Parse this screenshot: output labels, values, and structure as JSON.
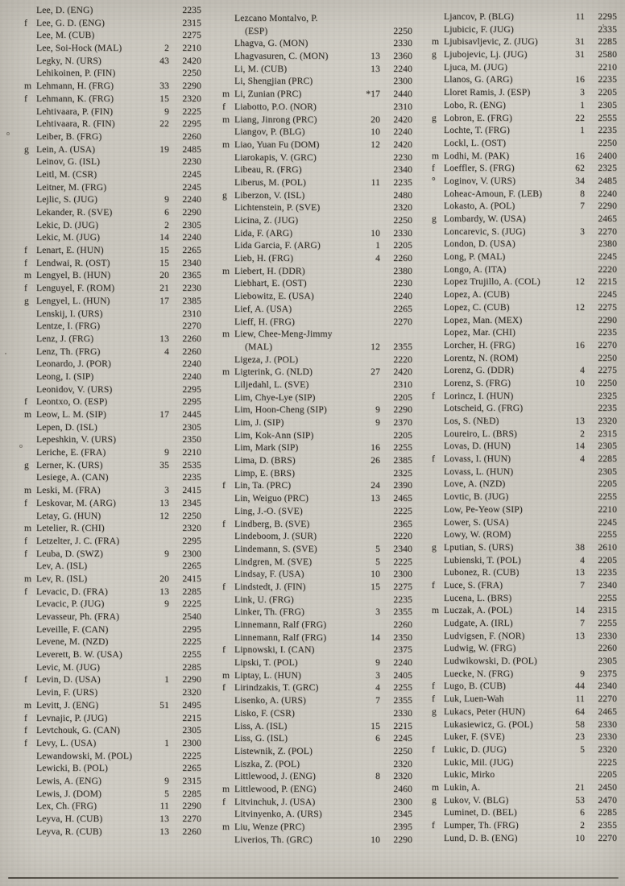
{
  "document": {
    "kind": "scanned rating list page",
    "ink_color": "#34312b",
    "paper_color": "#d3d0c8"
  },
  "columns": [
    {
      "entries": [
        [
          "",
          "Lee, D. (ENG)",
          "",
          "2235"
        ],
        [
          "f",
          "Lee, G. D. (ENG)",
          "",
          "2315"
        ],
        [
          "",
          "Lee, M. (CUB)",
          "",
          "2275"
        ],
        [
          "",
          "Lee, Soi-Hock (MAL)",
          "2",
          "2210"
        ],
        [
          "",
          "Legky, N. (URS)",
          "43",
          "2420"
        ],
        [
          "",
          "Lehikoinen, P. (FIN)",
          "",
          "2250"
        ],
        [
          "m",
          "Lehmann, H. (FRG)",
          "33",
          "2290"
        ],
        [
          "f",
          "Lehmann, K. (FRG)",
          "15",
          "2320"
        ],
        [
          "",
          "Lehtivaara, P. (FIN)",
          "9",
          "2225"
        ],
        [
          "",
          "Lehtivaara, R. (FIN)",
          "22",
          "2295"
        ],
        [
          "",
          "Leiber, B. (FRG)",
          "",
          "2260"
        ],
        [
          "g",
          "Lein, A. (USA)",
          "19",
          "2485"
        ],
        [
          "",
          "Leinov, G. (ISL)",
          "",
          "2230"
        ],
        [
          "",
          "Leitl, M. (CSR)",
          "",
          "2245"
        ],
        [
          "",
          "Leitner, M. (FRG)",
          "",
          "2245"
        ],
        [
          "",
          "Lejlic, S. (JUG)",
          "9",
          "2240"
        ],
        [
          "",
          "Lekander, R. (SVE)",
          "6",
          "2290"
        ],
        [
          "",
          "Lekic, D. (JUG)",
          "2",
          "2305"
        ],
        [
          "",
          "Lekic, M. (JUG)",
          "14",
          "2240"
        ],
        [
          "f",
          "Lenart, E. (HUN)",
          "15",
          "2265"
        ],
        [
          "f",
          "Lendwai, R. (OST)",
          "15",
          "2340"
        ],
        [
          "m",
          "Lengyel, B. (HUN)",
          "20",
          "2365"
        ],
        [
          "f",
          "Lenguyel, F. (ROM)",
          "21",
          "2230"
        ],
        [
          "g",
          "Lengyel, L. (HUN)",
          "17",
          "2385"
        ],
        [
          "",
          "Lenskij, I. (URS)",
          "",
          "2310"
        ],
        [
          "",
          "Lentze, I. (FRG)",
          "",
          "2270"
        ],
        [
          "",
          "Lenz, J. (FRG)",
          "13",
          "2260"
        ],
        [
          "",
          "Lenz, Th. (FRG)",
          "4",
          "2260"
        ],
        [
          "",
          "Leonardo, J. (POR)",
          "",
          "2240"
        ],
        [
          "",
          "Leong, I. (SIP)",
          "",
          "2240"
        ],
        [
          "",
          "Leonidov, V. (URS)",
          "",
          "2295"
        ],
        [
          "f",
          "Leontxo, O. (ESP)",
          "",
          "2295"
        ],
        [
          "m",
          "Leow, L. M. (SIP)",
          "17",
          "2445"
        ],
        [
          "",
          "Lepen, D. (ISL)",
          "",
          "2305"
        ],
        [
          "",
          "Lepeshkin, V. (URS)",
          "",
          "2350"
        ],
        [
          "",
          "Leriche, E. (FRA)",
          "9",
          "2210"
        ],
        [
          "g",
          "Lerner, K. (URS)",
          "35",
          "2535"
        ],
        [
          "",
          "Lesiege, A. (CAN)",
          "",
          "2235"
        ],
        [
          "m",
          "Leski, M. (FRA)",
          "3",
          "2415"
        ],
        [
          "f",
          "Leskovar, M. (ARG)",
          "13",
          "2345"
        ],
        [
          "",
          "Letay, G. (HUN)",
          "12",
          "2250"
        ],
        [
          "m",
          "Letelier, R. (CHI)",
          "",
          "2320"
        ],
        [
          "f",
          "Letzelter, J. C. (FRA)",
          "",
          "2295"
        ],
        [
          "f",
          "Leuba, D. (SWZ)",
          "9",
          "2300"
        ],
        [
          "",
          "Lev, A. (ISL)",
          "",
          "2265"
        ],
        [
          "m",
          "Lev, R. (ISL)",
          "20",
          "2415"
        ],
        [
          "f",
          "Levacic, D. (FRA)",
          "13",
          "2285"
        ],
        [
          "",
          "Levacic, P. (JUG)",
          "9",
          "2225"
        ],
        [
          "",
          "Levasseur, Ph. (FRA)",
          "",
          "2540"
        ],
        [
          "",
          "Leveille, F. (CAN)",
          "",
          "2295"
        ],
        [
          "",
          "Levene, M. (NZD)",
          "",
          "2225"
        ],
        [
          "",
          "Leverett, B. W. (USA)",
          "",
          "2255"
        ],
        [
          "",
          "Levic, M. (JUG)",
          "",
          "2285"
        ],
        [
          "f",
          "Levin, D. (USA)",
          "1",
          "2290"
        ],
        [
          "",
          "Levin, F. (URS)",
          "",
          "2320"
        ],
        [
          "m",
          "Levitt, J. (ENG)",
          "51",
          "2495"
        ],
        [
          "f",
          "Levnajic, P. (JUG)",
          "",
          "2215"
        ],
        [
          "f",
          "Levtchouk, G. (CAN)",
          "",
          "2305"
        ],
        [
          "f",
          "Levy, L. (USA)",
          "1",
          "2300"
        ],
        [
          "",
          "Lewandowski, M. (POL)",
          "",
          "2225"
        ],
        [
          "",
          "Lewicki, B. (POL)",
          "",
          "2265"
        ],
        [
          "",
          "Lewis, A. (ENG)",
          "9",
          "2315"
        ],
        [
          "",
          "Lewis, J. (DOM)",
          "5",
          "2285"
        ],
        [
          "",
          "Lex, Ch. (FRG)",
          "11",
          "2290"
        ],
        [
          "",
          "Leyva, H. (CUB)",
          "13",
          "2270"
        ],
        [
          "",
          "Leyva, R. (CUB)",
          "13",
          "2260"
        ]
      ]
    },
    {
      "entries": [
        [
          "",
          "Lezcano Montalvo, P.",
          "",
          "2250",
          "(ESP)"
        ],
        [
          "",
          "Lhagva, G. (MON)",
          "",
          "2330"
        ],
        [
          "",
          "Lhagvasuren, C. (MON)",
          "13",
          "2360"
        ],
        [
          "",
          "Li, M. (CUB)",
          "13",
          "2240"
        ],
        [
          "",
          "Li, Shengjian (PRC)",
          "",
          "2300"
        ],
        [
          "m",
          "Li, Zunian (PRC)",
          "*17",
          "2440"
        ],
        [
          "f",
          "Liabotto, P.O. (NOR)",
          "",
          "2310"
        ],
        [
          "m",
          "Liang, Jinrong (PRC)",
          "20",
          "2420"
        ],
        [
          "",
          "Liangov, P. (BLG)",
          "10",
          "2240"
        ],
        [
          "m",
          "Liao, Yuan Fu (DOM)",
          "12",
          "2420"
        ],
        [
          "",
          "Liarokapis, V. (GRC)",
          "",
          "2230"
        ],
        [
          "",
          "Libeau, R. (FRG)",
          "",
          "2340"
        ],
        [
          "",
          "Liberus, M. (POL)",
          "11",
          "2235"
        ],
        [
          "g",
          "Liberzon, V. (ISL)",
          "",
          "2480"
        ],
        [
          "",
          "Lichtenstein, P. (SVE)",
          "",
          "2320"
        ],
        [
          "",
          "Licina, Z. (JUG)",
          "",
          "2250"
        ],
        [
          "",
          "Lida, F. (ARG)",
          "10",
          "2330"
        ],
        [
          "",
          "Lida Garcia, F. (ARG)",
          "1",
          "2205"
        ],
        [
          "",
          "Lieb, H. (FRG)",
          "4",
          "2260"
        ],
        [
          "m",
          "Liebert, H. (DDR)",
          "",
          "2380"
        ],
        [
          "",
          "Liebhart, E. (OST)",
          "",
          "2230"
        ],
        [
          "",
          "Liebowitz, E. (USA)",
          "",
          "2240"
        ],
        [
          "",
          "Lief, A. (USA)",
          "",
          "2265"
        ],
        [
          "",
          "Lieff, H. (FRG)",
          "",
          "2270"
        ],
        [
          "m",
          "Liew, Chee-Meng-Jimmy",
          "12",
          "2355",
          "(MAL)"
        ],
        [
          "",
          "Ligeza, J. (POL)",
          "",
          "2220"
        ],
        [
          "m",
          "Ligterink, G. (NLD)",
          "27",
          "2420"
        ],
        [
          "",
          "Liljedahl, L. (SVE)",
          "",
          "2310"
        ],
        [
          "",
          "Lim, Chye-Lye (SIP)",
          "",
          "2205"
        ],
        [
          "",
          "Lim, Hoon-Cheng (SIP)",
          "9",
          "2290"
        ],
        [
          "",
          "Lim, J. (SIP)",
          "9",
          "2370"
        ],
        [
          "",
          "Lim, Kok-Ann (SIP)",
          "",
          "2205"
        ],
        [
          "",
          "Lim, Mark (SIP)",
          "16",
          "2255"
        ],
        [
          "",
          "Lima, D. (BRS)",
          "26",
          "2385"
        ],
        [
          "",
          "Limp, E. (BRS)",
          "",
          "2325"
        ],
        [
          "f",
          "Lin, Ta. (PRC)",
          "24",
          "2390"
        ],
        [
          "",
          "Lin, Weiguo (PRC)",
          "13",
          "2465"
        ],
        [
          "",
          "Ling, J.-O. (SVE)",
          "",
          "2225"
        ],
        [
          "f",
          "Lindberg, B. (SVE)",
          "",
          "2365"
        ],
        [
          "",
          "Lindeboom, J. (SUR)",
          "",
          "2220"
        ],
        [
          "",
          "Lindemann, S. (SVE)",
          "5",
          "2340"
        ],
        [
          "",
          "Lindgren, M. (SVE)",
          "5",
          "2225"
        ],
        [
          "",
          "Lindsay, F. (USA)",
          "10",
          "2300"
        ],
        [
          "f",
          "Lindstedt, J. (FIN)",
          "15",
          "2275"
        ],
        [
          "",
          "Link, U. (FRG)",
          "",
          "2235"
        ],
        [
          "",
          "Linker, Th. (FRG)",
          "3",
          "2355"
        ],
        [
          "",
          "Linnemann, Ralf (FRG)",
          "",
          "2260"
        ],
        [
          "",
          "Linnemann, Ralf (FRG)",
          "14",
          "2350"
        ],
        [
          "f",
          "Lipnowski, I. (CAN)",
          "",
          "2375"
        ],
        [
          "",
          "Lipski, T. (POL)",
          "9",
          "2240"
        ],
        [
          "m",
          "Liptay, L. (HUN)",
          "3",
          "2405"
        ],
        [
          "f",
          "Lirindzakis, T. (GRC)",
          "4",
          "2255"
        ],
        [
          "",
          "Lisenko, A. (URS)",
          "7",
          "2355"
        ],
        [
          "",
          "Lisko, F. (CSR)",
          "",
          "2330"
        ],
        [
          "",
          "Liss, A. (ISL)",
          "15",
          "2215"
        ],
        [
          "",
          "Liss, G. (ISL)",
          "6",
          "2245"
        ],
        [
          "",
          "Listewnik, Z. (POL)",
          "",
          "2250"
        ],
        [
          "",
          "Liszka, Z. (POL)",
          "",
          "2320"
        ],
        [
          "",
          "Littlewood, J. (ENG)",
          "8",
          "2320"
        ],
        [
          "m",
          "Littlewood, P. (ENG)",
          "",
          "2460"
        ],
        [
          "f",
          "Litvinchuk, J. (USA)",
          "",
          "2300"
        ],
        [
          "",
          "Litvinyenko, A. (URS)",
          "",
          "2345"
        ],
        [
          "m",
          "Liu, Wenze (PRC)",
          "",
          "2395"
        ],
        [
          "",
          "Liverios, Th. (GRC)",
          "10",
          "2290"
        ]
      ]
    },
    {
      "entries": [
        [
          "",
          "Ljancov, P. (BLG)",
          "11",
          "2295"
        ],
        [
          "",
          "Ljubicic, F. (JUG)",
          "",
          "2335"
        ],
        [
          "m",
          "Ljubisavljevic, Z. (JUG)",
          "31",
          "2285"
        ],
        [
          "g",
          "Ljubojevic, Lj. (JUG)",
          "31",
          "2580"
        ],
        [
          "",
          "Ljuca, M. (JUG)",
          "",
          "2210"
        ],
        [
          "",
          "Llanos, G. (ARG)",
          "16",
          "2235"
        ],
        [
          "",
          "Lloret Ramis, J. (ESP)",
          "3",
          "2205"
        ],
        [
          "",
          "Lobo, R. (ENG)",
          "1",
          "2305"
        ],
        [
          "g",
          "Lobron, E. (FRG)",
          "22",
          "2555"
        ],
        [
          "",
          "Lochte, T. (FRG)",
          "1",
          "2235"
        ],
        [
          "",
          "Lockl, L. (OST)",
          "",
          "2250"
        ],
        [
          "m",
          "Lodhi, M. (PAK)",
          "16",
          "2400"
        ],
        [
          "f",
          "Loeffler, S. (FRG)",
          "62",
          "2325"
        ],
        [
          "°",
          "Loginov, V. (URS)",
          "34",
          "2485"
        ],
        [
          "",
          "Loheac-Amoun, F. (LEB)",
          "8",
          "2240"
        ],
        [
          "",
          "Lokasto, A. (POL)",
          "7",
          "2290"
        ],
        [
          "g",
          "Lombardy, W. (USA)",
          "",
          "2465"
        ],
        [
          "",
          "Loncarevic, S. (JUG)",
          "3",
          "2270"
        ],
        [
          "",
          "London, D. (USA)",
          "",
          "2380"
        ],
        [
          "",
          "Long, P. (MAL)",
          "",
          "2245"
        ],
        [
          "",
          "Longo, A. (ITA)",
          "",
          "2220"
        ],
        [
          "",
          "Lopez Trujillo, A. (COL)",
          "12",
          "2215"
        ],
        [
          "",
          "Lopez, A. (CUB)",
          "",
          "2245"
        ],
        [
          "",
          "Lopez, C. (CUB)",
          "12",
          "2275"
        ],
        [
          "",
          "Lopez, Man. (MEX)",
          "",
          "2290"
        ],
        [
          "",
          "Lopez, Mar. (CHI)",
          "",
          "2235"
        ],
        [
          "",
          "Lorcher, H. (FRG)",
          "16",
          "2270"
        ],
        [
          "",
          "Lorentz, N. (ROM)",
          "",
          "2250"
        ],
        [
          "",
          "Lorenz, G. (DDR)",
          "4",
          "2275"
        ],
        [
          "",
          "Lorenz, S. (FRG)",
          "10",
          "2250"
        ],
        [
          "f",
          "Lorincz, I. (HUN)",
          "",
          "2325"
        ],
        [
          "",
          "Lotscheid, G. (FRG)",
          "",
          "2235"
        ],
        [
          "",
          "Los, S. (NLD)",
          "13",
          "2320"
        ],
        [
          "",
          "Loureiro, L. (BRS)",
          "2",
          "2315"
        ],
        [
          "",
          "Lovas, D. (HUN)",
          "14",
          "2305"
        ],
        [
          "f",
          "Lovass, I. (HUN)",
          "4",
          "2285"
        ],
        [
          "",
          "Lovass, L. (HUN)",
          "",
          "2305"
        ],
        [
          "",
          "Love, A. (NZD)",
          "",
          "2205"
        ],
        [
          "",
          "Lovtic, B. (JUG)",
          "",
          "2255"
        ],
        [
          "",
          "Low, Pe-Yeow (SIP)",
          "",
          "2210"
        ],
        [
          "",
          "Lower, S. (USA)",
          "",
          "2245"
        ],
        [
          "",
          "Lowy, W. (ROM)",
          "",
          "2255"
        ],
        [
          "g",
          "Lputian, S. (URS)",
          "38",
          "2610"
        ],
        [
          "",
          "Lubienski, T. (POL)",
          "4",
          "2205"
        ],
        [
          "",
          "Lubonez, R. (CUB)",
          "13",
          "2235"
        ],
        [
          "f",
          "Luce, S. (FRA)",
          "7",
          "2340"
        ],
        [
          "",
          "Lucena, L. (BRS)",
          "",
          "2255"
        ],
        [
          "m",
          "Luczak, A. (POL)",
          "14",
          "2315"
        ],
        [
          "",
          "Ludgate, A. (IRL)",
          "7",
          "2255"
        ],
        [
          "",
          "Ludvigsen, F. (NOR)",
          "13",
          "2330"
        ],
        [
          "",
          "Ludwig, W. (FRG)",
          "",
          "2260"
        ],
        [
          "",
          "Ludwikowski, D. (POL)",
          "",
          "2305"
        ],
        [
          "",
          "Luecke, N. (FRG)",
          "9",
          "2375"
        ],
        [
          "f",
          "Lugo, B. (CUB)",
          "44",
          "2340"
        ],
        [
          "f",
          "Luk, Luen-Wah",
          "11",
          "2270"
        ],
        [
          "g",
          "Lukacs, Peter (HUN)",
          "64",
          "2465"
        ],
        [
          "",
          "Lukasiewicz, G. (POL)",
          "58",
          "2330"
        ],
        [
          "",
          "Luker, F. (SVE)",
          "23",
          "2330"
        ],
        [
          "f",
          "Lukic, D. (JUG)",
          "5",
          "2320"
        ],
        [
          "",
          "Lukic, Mil. (JUG)",
          "",
          "2225"
        ],
        [
          "",
          "Lukic, Mirko",
          "",
          "2205"
        ],
        [
          "m",
          "Lukin, A.",
          "21",
          "2450"
        ],
        [
          "g",
          "Lukov, V. (BLG)",
          "53",
          "2470"
        ],
        [
          "",
          "Luminet, D. (BEL)",
          "6",
          "2285"
        ],
        [
          "f",
          "Lumper, Th. (FRG)",
          "2",
          "2355"
        ],
        [
          "",
          "Lund, D. B. (ENG)",
          "10",
          "2270"
        ]
      ]
    }
  ]
}
